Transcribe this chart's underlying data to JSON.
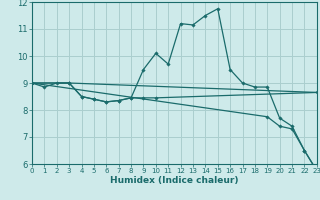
{
  "xlabel": "Humidex (Indice chaleur)",
  "background_color": "#ceeaea",
  "grid_color": "#aacece",
  "line_color": "#1a6b6b",
  "xlim": [
    0,
    23
  ],
  "ylim": [
    6,
    12
  ],
  "yticks": [
    6,
    7,
    8,
    9,
    10,
    11,
    12
  ],
  "xticks": [
    0,
    1,
    2,
    3,
    4,
    5,
    6,
    7,
    8,
    9,
    10,
    11,
    12,
    13,
    14,
    15,
    16,
    17,
    18,
    19,
    20,
    21,
    22,
    23
  ],
  "lines": [
    {
      "x": [
        0,
        1,
        2,
        3,
        4,
        5,
        6,
        7,
        8,
        9,
        10,
        11,
        12,
        13,
        14,
        15,
        16,
        17,
        18,
        19,
        20,
        21,
        22,
        23
      ],
      "y": [
        9.0,
        8.85,
        9.0,
        9.0,
        8.5,
        8.4,
        8.3,
        8.35,
        8.45,
        9.5,
        10.1,
        9.7,
        11.2,
        11.15,
        11.5,
        11.75,
        9.5,
        9.0,
        8.85,
        8.85,
        7.7,
        7.4,
        6.5,
        5.75
      ],
      "markers": true
    },
    {
      "x": [
        0,
        3,
        23
      ],
      "y": [
        9.0,
        9.0,
        8.65
      ],
      "markers": false
    },
    {
      "x": [
        0,
        3,
        4,
        5,
        6,
        7,
        8,
        9,
        10,
        23
      ],
      "y": [
        9.0,
        9.0,
        8.5,
        8.4,
        8.3,
        8.35,
        8.45,
        8.45,
        8.45,
        8.65
      ],
      "markers": true
    },
    {
      "x": [
        0,
        19,
        20,
        21,
        22,
        23
      ],
      "y": [
        9.0,
        7.75,
        7.4,
        7.3,
        6.5,
        5.75
      ],
      "markers": true
    }
  ]
}
